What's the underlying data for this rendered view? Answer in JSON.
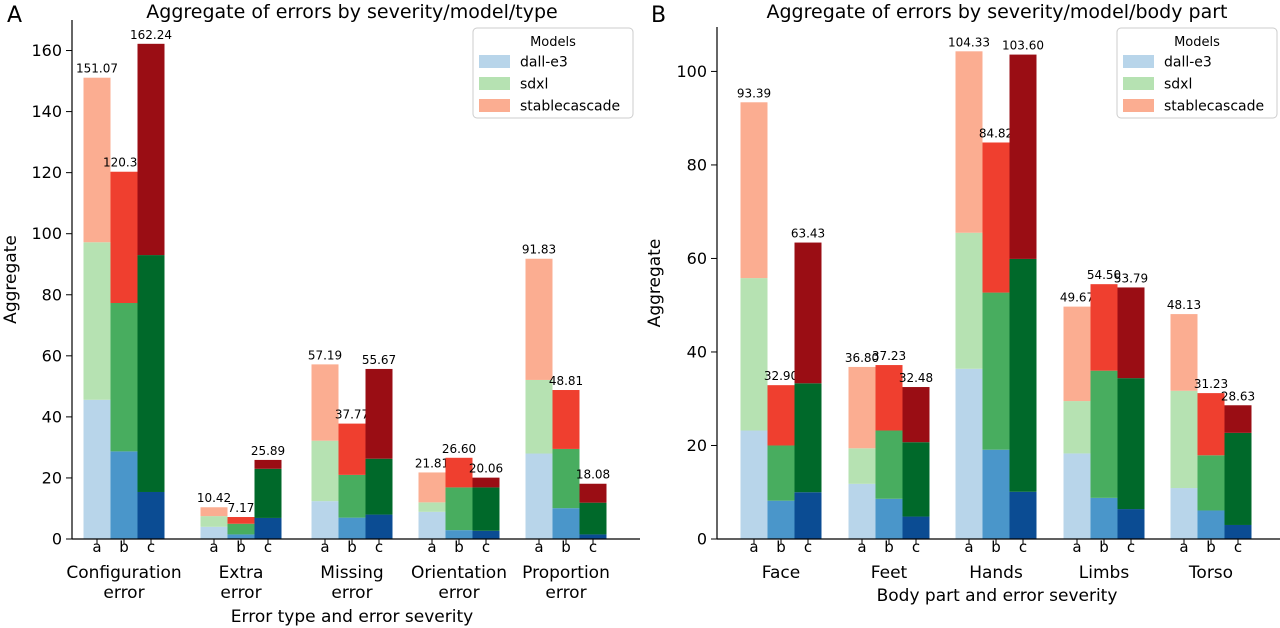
{
  "figure": {
    "legend_title": "Models",
    "models": [
      "dall-e3",
      "sdxl",
      "stablecascade"
    ],
    "severity_levels": [
      "a",
      "b",
      "c"
    ],
    "colors": {
      "a": [
        "#b8d5ea",
        "#b6e2b2",
        "#fbad91"
      ],
      "b": [
        "#4a96ca",
        "#48ad5f",
        "#ef3f2f"
      ],
      "c": [
        "#0b4c93",
        "#00692a",
        "#9a0d14"
      ]
    }
  },
  "chart_data": [
    {
      "panel": "A",
      "type": "bar",
      "stacked": true,
      "title": "Aggregate of errors by severity/model/type",
      "xlabel": "Error type and error severity",
      "ylabel": "Aggregate",
      "ylim": [
        0,
        170
      ],
      "yticks": [
        0,
        20,
        40,
        60,
        80,
        100,
        120,
        140,
        160
      ],
      "legend_position": "top-right",
      "categories": [
        "Configuration\nerror",
        "Extra\nerror",
        "Missing\nerror",
        "Orientation\nerror",
        "Proportion\nerror"
      ],
      "bars": [
        {
          "segments": [
            45.6,
            51.6,
            53.9
          ],
          "total_label": "151.07"
        },
        {
          "segments": [
            28.7,
            48.6,
            43.0
          ],
          "total_label": "120.33"
        },
        {
          "segments": [
            15.4,
            77.6,
            69.2
          ],
          "total_label": "162.24"
        },
        {
          "segments": [
            4.0,
            3.5,
            2.9
          ],
          "total_label": "10.42"
        },
        {
          "segments": [
            1.5,
            3.5,
            2.2
          ],
          "total_label": "7.17"
        },
        {
          "segments": [
            6.9,
            16.1,
            2.9
          ],
          "total_label": "25.89"
        },
        {
          "segments": [
            12.4,
            19.8,
            25.0
          ],
          "total_label": "57.19"
        },
        {
          "segments": [
            7.0,
            14.0,
            16.8
          ],
          "total_label": "37.77"
        },
        {
          "segments": [
            8.0,
            18.3,
            29.4
          ],
          "total_label": "55.67"
        },
        {
          "segments": [
            8.9,
            3.1,
            9.8
          ],
          "total_label": "21.81"
        },
        {
          "segments": [
            2.9,
            14.0,
            9.7
          ],
          "total_label": "26.60"
        },
        {
          "segments": [
            2.7,
            14.2,
            3.2
          ],
          "total_label": "20.06"
        },
        {
          "segments": [
            28.0,
            24.1,
            39.7
          ],
          "total_label": "91.83"
        },
        {
          "segments": [
            10.1,
            19.4,
            19.3
          ],
          "total_label": "48.81"
        },
        {
          "segments": [
            1.5,
            10.4,
            6.2
          ],
          "total_label": "18.08"
        }
      ]
    },
    {
      "panel": "B",
      "type": "bar",
      "stacked": true,
      "title": "Aggregate of errors by severity/model/body part",
      "xlabel": "Body part and error severity",
      "ylabel": "Aggregate",
      "ylim": [
        0,
        109.5
      ],
      "yticks": [
        0,
        20,
        40,
        60,
        80,
        100
      ],
      "legend_position": "top-right",
      "categories": [
        "Face",
        "Feet",
        "Hands",
        "Limbs",
        "Torso"
      ],
      "bars": [
        {
          "segments": [
            23.2,
            32.6,
            37.6
          ],
          "total_label": "93.39"
        },
        {
          "segments": [
            8.2,
            11.8,
            12.9
          ],
          "total_label": "32.90"
        },
        {
          "segments": [
            10.0,
            23.3,
            30.1
          ],
          "total_label": "63.43"
        },
        {
          "segments": [
            11.8,
            7.6,
            17.4
          ],
          "total_label": "36.80"
        },
        {
          "segments": [
            8.6,
            14.6,
            14.0
          ],
          "total_label": "37.23"
        },
        {
          "segments": [
            4.8,
            15.9,
            11.8
          ],
          "total_label": "32.48"
        },
        {
          "segments": [
            36.4,
            29.1,
            38.8
          ],
          "total_label": "104.33"
        },
        {
          "segments": [
            19.1,
            33.6,
            32.1
          ],
          "total_label": "84.82"
        },
        {
          "segments": [
            10.1,
            49.8,
            43.7
          ],
          "total_label": "103.60"
        },
        {
          "segments": [
            18.3,
            11.2,
            20.2
          ],
          "total_label": "49.67"
        },
        {
          "segments": [
            8.8,
            27.2,
            18.5
          ],
          "total_label": "54.50"
        },
        {
          "segments": [
            6.4,
            28.0,
            19.4
          ],
          "total_label": "53.79"
        },
        {
          "segments": [
            10.9,
            20.8,
            16.4
          ],
          "total_label": "48.13"
        },
        {
          "segments": [
            6.1,
            11.8,
            13.3
          ],
          "total_label": "31.23"
        },
        {
          "segments": [
            3.0,
            19.7,
            5.9
          ],
          "total_label": "28.63"
        }
      ]
    }
  ]
}
